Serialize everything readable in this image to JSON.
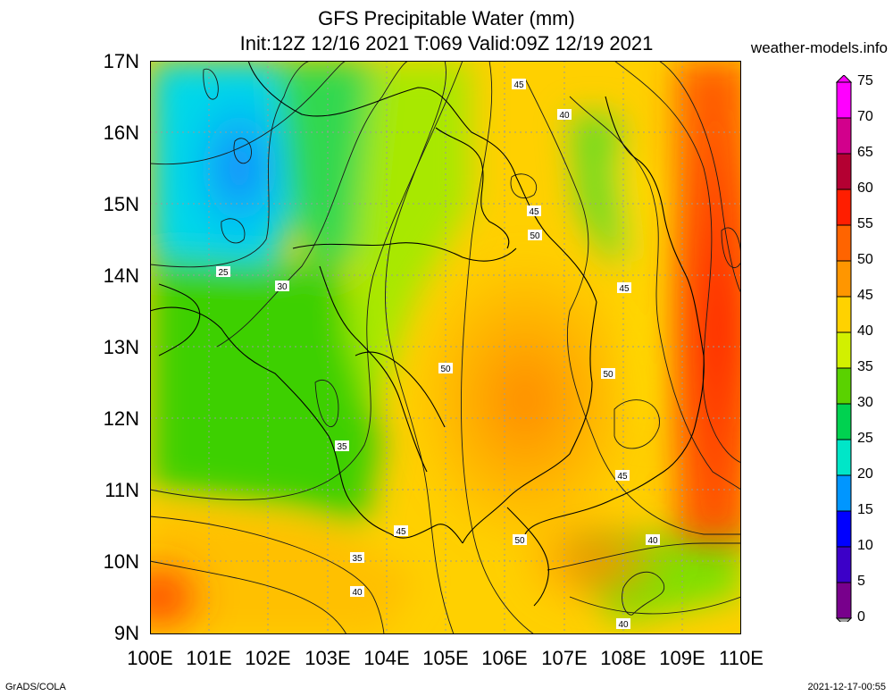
{
  "title": {
    "line1": "GFS Precipitable Water (mm)",
    "line2": "Init:12Z 12/16 2021 T:069 Valid:09Z 12/19 2021"
  },
  "site": "weather-models.info",
  "footer": {
    "left": "GrADS/COLA",
    "right": "2021-12-17-00:55"
  },
  "map": {
    "lat_ticks": [
      "17N",
      "16N",
      "15N",
      "14N",
      "13N",
      "12N",
      "11N",
      "10N",
      "9N"
    ],
    "lon_ticks": [
      "100E",
      "101E",
      "102E",
      "103E",
      "104E",
      "105E",
      "106E",
      "107E",
      "108E",
      "109E",
      "110E"
    ],
    "lat_range": [
      9,
      17
    ],
    "lon_range": [
      100,
      110
    ],
    "contour_labels": [
      "45",
      "40",
      "45",
      "50",
      "45",
      "25",
      "30",
      "50",
      "50",
      "35",
      "45",
      "45",
      "35",
      "50",
      "40",
      "40",
      "40"
    ]
  },
  "colorbar": {
    "labels": [
      "75",
      "70",
      "65",
      "60",
      "55",
      "50",
      "45",
      "40",
      "35",
      "30",
      "25",
      "20",
      "15",
      "10",
      "5",
      "0"
    ],
    "colors": [
      "#ff00ff",
      "#d2008c",
      "#b40032",
      "#ff1e00",
      "#ff6400",
      "#ff9600",
      "#ffd200",
      "#d2f000",
      "#5ad200",
      "#00d250",
      "#00e6c8",
      "#0096ff",
      "#0000ff",
      "#3c00c8",
      "#78008c",
      "#a0a0a0"
    ]
  }
}
